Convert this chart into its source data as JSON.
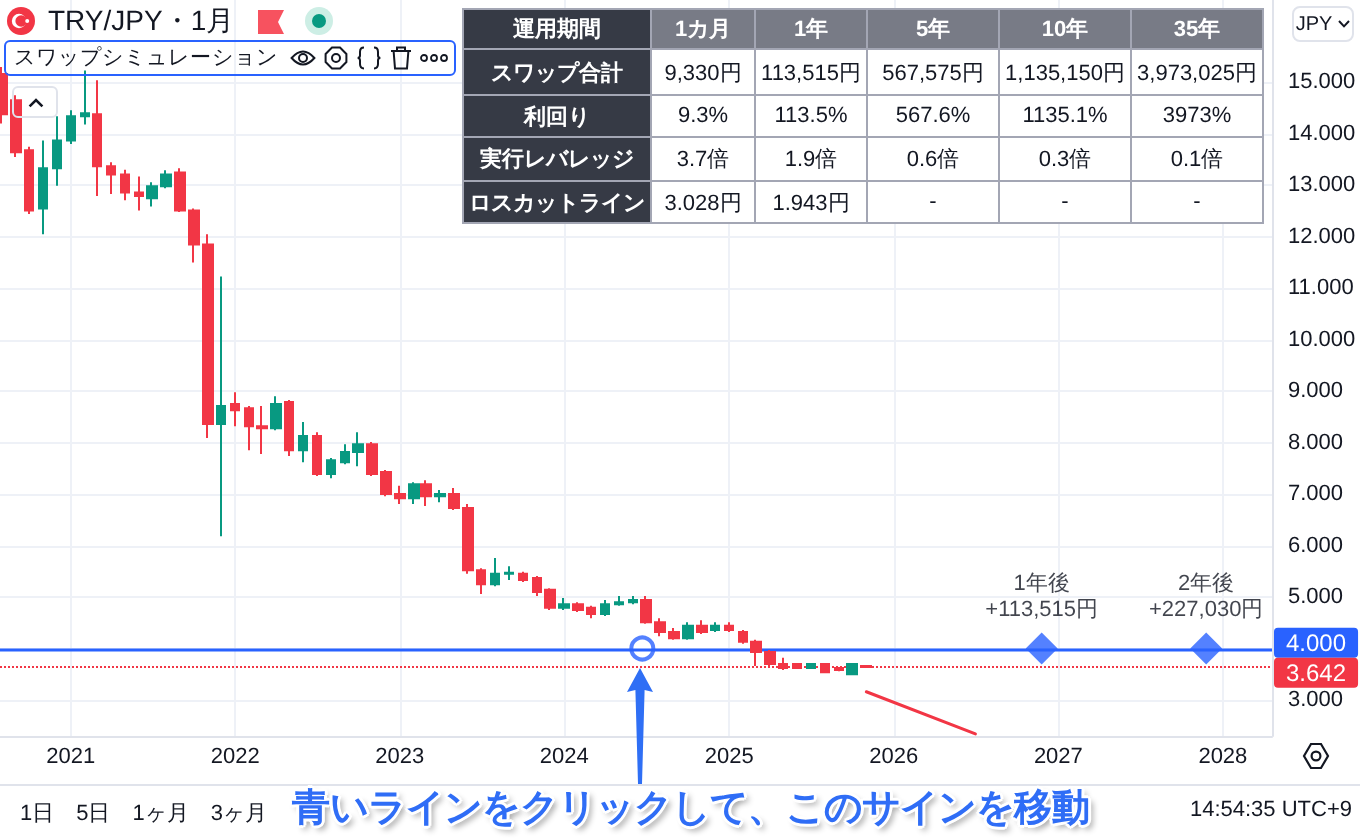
{
  "chart_data": [
    {
      "type": "candlestick",
      "title": "TRY/JPY・1月",
      "subtitle": "スワップシミュレーション",
      "ylabel": "JPY",
      "x": [
        "2020-08",
        "2020-09",
        "2020-10",
        "2020-11",
        "2020-12",
        "2021-01",
        "2021-02",
        "2021-03",
        "2021-04",
        "2021-05",
        "2021-06",
        "2021-07",
        "2021-08",
        "2021-09",
        "2021-10",
        "2021-11",
        "2021-12",
        "2022-01",
        "2022-02",
        "2022-03",
        "2022-04",
        "2022-05",
        "2022-06",
        "2022-07",
        "2022-08",
        "2022-09",
        "2022-10",
        "2022-11",
        "2022-12",
        "2023-01",
        "2023-02",
        "2023-03",
        "2023-04",
        "2023-05",
        "2023-06",
        "2023-07",
        "2023-08",
        "2023-09",
        "2023-10",
        "2023-11",
        "2023-12",
        "2024-01",
        "2024-02",
        "2024-03",
        "2024-04",
        "2024-05",
        "2024-06",
        "2024-07",
        "2024-08",
        "2024-09",
        "2024-10",
        "2024-11",
        "2024-12",
        "2025-01",
        "2025-02",
        "2025-03",
        "2025-04",
        "2025-05",
        "2025-06",
        "2025-07",
        "2025-08",
        "2025-09",
        "2025-10",
        "2025-11"
      ],
      "ohlc": [
        [
          15.16,
          15.3,
          14.2,
          14.38
        ],
        [
          14.65,
          14.75,
          13.55,
          13.64
        ],
        [
          13.68,
          13.75,
          12.44,
          12.51
        ],
        [
          12.55,
          13.87,
          12.05,
          13.33
        ],
        [
          13.33,
          14.34,
          12.99,
          13.87
        ],
        [
          13.87,
          14.46,
          13.8,
          14.34
        ],
        [
          14.34,
          15.23,
          14.18,
          14.4
        ],
        [
          14.38,
          15.04,
          12.79,
          13.37
        ],
        [
          13.37,
          13.45,
          12.83,
          13.21
        ],
        [
          13.21,
          13.3,
          12.71,
          12.86
        ],
        [
          12.86,
          13.17,
          12.51,
          12.79
        ],
        [
          12.75,
          13.06,
          12.59,
          12.98
        ],
        [
          12.98,
          13.29,
          12.94,
          13.21
        ],
        [
          13.25,
          13.33,
          12.48,
          12.51
        ],
        [
          12.51,
          12.55,
          11.5,
          11.85
        ],
        [
          11.85,
          12.05,
          8.09,
          8.36
        ],
        [
          8.36,
          11.23,
          6.18,
          8.71
        ],
        [
          8.75,
          8.98,
          8.32,
          8.63
        ],
        [
          8.67,
          8.71,
          7.85,
          8.32
        ],
        [
          8.32,
          8.71,
          7.78,
          8.28
        ],
        [
          8.28,
          8.9,
          8.24,
          8.75
        ],
        [
          8.79,
          8.83,
          7.74,
          7.85
        ],
        [
          7.85,
          8.4,
          7.62,
          8.13
        ],
        [
          8.13,
          8.2,
          7.35,
          7.39
        ],
        [
          7.39,
          7.7,
          7.31,
          7.66
        ],
        [
          7.62,
          7.97,
          7.58,
          7.82
        ],
        [
          7.82,
          8.2,
          7.54,
          7.97
        ],
        [
          7.97,
          8.01,
          7.35,
          7.39
        ],
        [
          7.43,
          7.47,
          6.96,
          7.0
        ],
        [
          7.0,
          7.16,
          6.81,
          6.92
        ],
        [
          6.92,
          7.23,
          6.81,
          7.19
        ],
        [
          7.19,
          7.27,
          6.77,
          6.96
        ],
        [
          6.96,
          7.08,
          6.84,
          7.0
        ],
        [
          7.0,
          7.12,
          6.69,
          6.73
        ],
        [
          6.73,
          6.81,
          5.45,
          5.52
        ],
        [
          5.52,
          5.56,
          5.06,
          5.25
        ],
        [
          5.25,
          5.76,
          5.21,
          5.45
        ],
        [
          5.45,
          5.6,
          5.33,
          5.47
        ],
        [
          5.45,
          5.49,
          5.29,
          5.33
        ],
        [
          5.37,
          5.41,
          5.02,
          5.1
        ],
        [
          5.14,
          5.17,
          4.75,
          4.79
        ],
        [
          4.79,
          4.98,
          4.75,
          4.86
        ],
        [
          4.86,
          4.9,
          4.71,
          4.75
        ],
        [
          4.79,
          4.83,
          4.59,
          4.67
        ],
        [
          4.67,
          4.94,
          4.63,
          4.86
        ],
        [
          4.86,
          5.02,
          4.83,
          4.9
        ],
        [
          4.9,
          5.02,
          4.86,
          4.94
        ],
        [
          4.94,
          5.02,
          4.48,
          4.51
        ],
        [
          4.51,
          4.59,
          4.24,
          4.32
        ],
        [
          4.32,
          4.4,
          4.17,
          4.2
        ],
        [
          4.2,
          4.51,
          4.17,
          4.44
        ],
        [
          4.44,
          4.55,
          4.28,
          4.32
        ],
        [
          4.36,
          4.51,
          4.32,
          4.44
        ],
        [
          4.44,
          4.51,
          4.32,
          4.36
        ],
        [
          4.32,
          4.36,
          4.09,
          4.13
        ],
        [
          4.13,
          4.17,
          3.66,
          3.93
        ],
        [
          3.93,
          3.97,
          3.66,
          3.7
        ],
        [
          3.7,
          3.82,
          3.58,
          3.62
        ],
        [
          3.7,
          3.72,
          3.6,
          3.62
        ],
        [
          3.62,
          3.72,
          3.6,
          3.7
        ],
        [
          3.7,
          3.72,
          3.52,
          3.54
        ],
        [
          3.62,
          3.64,
          3.56,
          3.58
        ],
        [
          3.5,
          3.72,
          3.48,
          3.7
        ],
        [
          3.66,
          3.68,
          3.62,
          3.642
        ]
      ],
      "colors": [
        "#f23645",
        "#f23645",
        "#f23645",
        "#089981",
        "#089981",
        "#089981",
        "#089981",
        "#f23645",
        "#f23645",
        "#f23645",
        "#f23645",
        "#089981",
        "#089981",
        "#f23645",
        "#f23645",
        "#f23645",
        "#089981",
        "#f23645",
        "#f23645",
        "#f23645",
        "#089981",
        "#f23645",
        "#089981",
        "#f23645",
        "#089981",
        "#089981",
        "#089981",
        "#f23645",
        "#f23645",
        "#f23645",
        "#089981",
        "#f23645",
        "#089981",
        "#f23645",
        "#f23645",
        "#f23645",
        "#089981",
        "#089981",
        "#f23645",
        "#f23645",
        "#f23645",
        "#089981",
        "#f23645",
        "#f23645",
        "#089981",
        "#089981",
        "#089981",
        "#f23645",
        "#f23645",
        "#f23645",
        "#089981",
        "#f23645",
        "#089981",
        "#f23645",
        "#f23645",
        "#f23645",
        "#f23645",
        "#f23645",
        "#f23645",
        "#089981",
        "#f23645",
        "#f23645",
        "#089981",
        "#f23645"
      ],
      "series": [
        {
          "type": "scatter",
          "marker": "circle",
          "color": "#2962ff",
          "x": [
            "2024-06-22"
          ],
          "values": [
            4
          ]
        },
        {
          "type": "scatter",
          "marker": "diamond",
          "color": "#2962ff",
          "x": [
            "2026-11-25",
            "2027-11-25"
          ],
          "values": [
            4,
            4
          ],
          "value_labels": [
            "1年後\n+113,515円",
            "2年後\n+227,030円"
          ]
        },
        {
          "type": "line",
          "marker": "none",
          "color": "#f23645",
          "x": [
            "2025-11",
            "2026-07"
          ],
          "values": [
            3.16,
            2.34
          ]
        }
      ],
      "xlim": [
        "2020-07-28",
        "2028-04-19"
      ],
      "xticks": [
        "2021",
        "2022",
        "2023",
        "2024",
        "2025",
        "2026",
        "2027",
        "2028"
      ],
      "ylim": [
        2.3,
        16.6
      ],
      "yticks": [
        {
          "value": 3,
          "label": "3.000"
        },
        {
          "value": 4,
          "label": null
        },
        {
          "value": 5,
          "label": "5.000"
        },
        {
          "value": 6,
          "label": "6.000"
        },
        {
          "value": 7,
          "label": "7.000"
        },
        {
          "value": 8,
          "label": "8.000"
        },
        {
          "value": 9,
          "label": "9.000"
        },
        {
          "value": 10,
          "label": "10.000"
        },
        {
          "value": 11,
          "label": "11.000"
        },
        {
          "value": 12,
          "label": "12.000"
        },
        {
          "value": 13,
          "label": "13.000"
        },
        {
          "value": 14,
          "label": "14.000"
        },
        {
          "value": 15,
          "label": "15.000"
        }
      ],
      "grid": true,
      "ref_lines": [
        {
          "axis": "y",
          "value": 4,
          "label": "4.000",
          "color": "#2962ff",
          "line_style": "solid"
        },
        {
          "axis": "y",
          "value": 3.642,
          "label": "3.642",
          "color": "#f23645",
          "line_style": "dotted"
        }
      ],
      "annotations": [
        "青いラインをクリックして、このサインを移動",
        "1日",
        "5日",
        "1ヶ月",
        "3ヶ月",
        "14:54:35 UTC+9"
      ]
    },
    {
      "type": "other",
      "xlabel": "運用期間",
      "categories": [
        "1カ月",
        "1年",
        "5年",
        "10年",
        "35年"
      ],
      "y_categories": [
        "スワップ合計",
        "利回り",
        "実行レバレッジ",
        "ロスカットライン"
      ],
      "cell_labels": [
        [
          "9,330円",
          "113,515円",
          "567,575円",
          "1,135,150円",
          "3,973,025円"
        ],
        [
          "9.3%",
          "113.5%",
          "567.6%",
          "1135.1%",
          "3973%"
        ],
        [
          "3.7倍",
          "1.9倍",
          "0.6倍",
          "0.3倍",
          "0.1倍"
        ],
        [
          "3.028円",
          "1.943円",
          "-",
          "-",
          "-"
        ]
      ]
    }
  ]
}
